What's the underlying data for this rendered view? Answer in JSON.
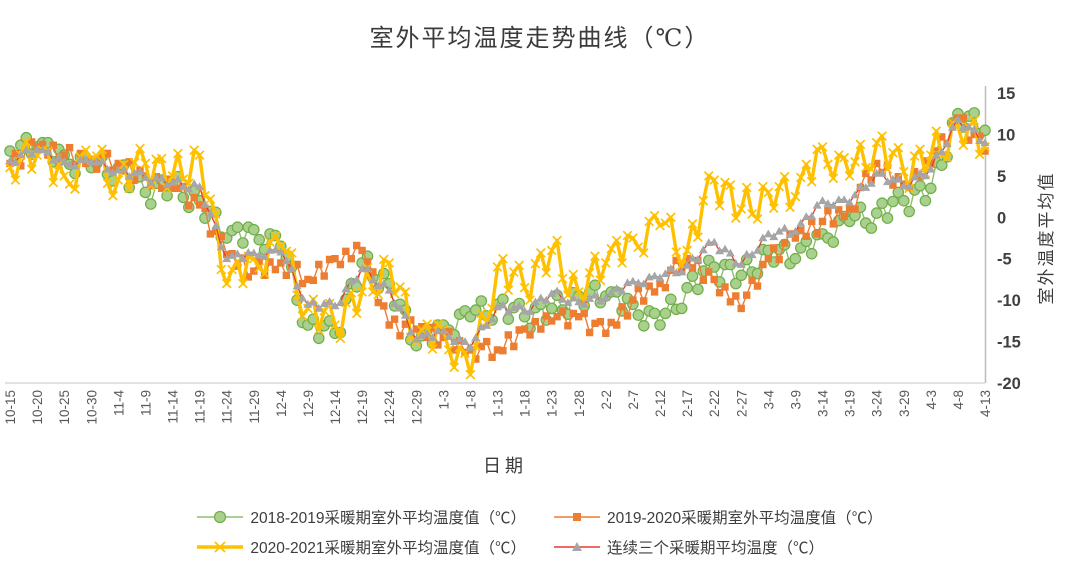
{
  "title": "室外平均温度走势曲线（℃）",
  "axes": {
    "x_title": "日期",
    "y_title": "室外温度平均值",
    "y_ticks": [
      15,
      10,
      5,
      0,
      -5,
      -10,
      -15,
      -20
    ],
    "y_min": -20,
    "y_max": 15,
    "x_tick_labels": [
      "10-15",
      "10-20",
      "10-25",
      "10-30",
      "11-4",
      "11-9",
      "11-14",
      "11-19",
      "11-24",
      "11-29",
      "12-4",
      "12-9",
      "12-14",
      "12-19",
      "12-24",
      "12-29",
      "1-3",
      "1-8",
      "1-13",
      "1-18",
      "1-23",
      "1-28",
      "2-2",
      "2-7",
      "2-12",
      "2-17",
      "2-22",
      "2-27",
      "3-4",
      "3-9",
      "3-14",
      "3-19",
      "3-24",
      "3-29",
      "4-3",
      "4-8",
      "4-13"
    ]
  },
  "colors": {
    "axis_line": "#bfbfbf",
    "baseline": "#d9d9d9",
    "x_tick_color": "#595959",
    "y_tick_color": "#3f3f3f",
    "title_color": "#3b3b3b"
  },
  "chart_data": {
    "type": "line",
    "title": "室外平均温度走势曲线（℃）",
    "xlabel": "日期",
    "ylabel": "室外温度平均值",
    "ylim": [
      -20,
      15
    ],
    "grid": false,
    "legend_position": "bottom",
    "x_anchor_labels": [
      "10-15",
      "10-20",
      "10-25",
      "10-30",
      "11-4",
      "11-9",
      "11-14",
      "11-19",
      "11-24",
      "11-29",
      "12-4",
      "12-9",
      "12-14",
      "12-19",
      "12-24",
      "12-29",
      "1-3",
      "1-8",
      "1-13",
      "1-18",
      "1-23",
      "1-28",
      "2-2",
      "2-7",
      "2-12",
      "2-17",
      "2-22",
      "2-27",
      "3-4",
      "3-9",
      "3-14",
      "3-19",
      "3-24",
      "3-29",
      "4-3",
      "4-8",
      "4-13"
    ],
    "anchor_step_days": 5,
    "total_days": 181,
    "series": [
      {
        "name": "2018-2019采暖期室外平均温度值（℃）",
        "marker": "circle",
        "line_color": "#8fbf6f",
        "marker_fill": "#a9d18e",
        "marker_stroke": "#70ad47",
        "line_width": 1.4,
        "anchor_values": [
          8,
          8.5,
          7.5,
          6,
          6,
          3,
          4,
          2,
          -2.5,
          -1.5,
          -3.5,
          -13,
          -14,
          -5.5,
          -8,
          -15.5,
          -13,
          -12,
          -10.5,
          -12,
          -11,
          -9.5,
          -9.5,
          -10.5,
          -13,
          -8.5,
          -6,
          -7,
          -4,
          -5,
          -2,
          -0.5,
          0.5,
          2,
          3.5,
          12.5,
          10.5
        ],
        "wiggle": [
          0.9,
          -1.2,
          0.5,
          1.3,
          -0.8,
          -1.6,
          0.7
        ]
      },
      {
        "name": "2019-2020采暖期室外平均温度值（℃）",
        "marker": "square",
        "line_color": "#ed7d31",
        "marker_fill": "#ed7d31",
        "marker_stroke": "#d9651a",
        "line_width": 1.4,
        "anchor_values": [
          6.5,
          8.5,
          7.5,
          7,
          6.5,
          5,
          3.5,
          1.5,
          -4.5,
          -6.5,
          -5.5,
          -7.5,
          -5,
          -4,
          -13,
          -13.5,
          -14.5,
          -16,
          -16,
          -13.5,
          -12.5,
          -12,
          -14,
          -10,
          -8,
          -5,
          -7.5,
          -11,
          -5,
          -2.5,
          -0.5,
          1,
          6.5,
          4,
          6.5,
          12,
          8
        ],
        "wiggle": [
          -0.6,
          0.8,
          -1.1,
          0.4,
          1.0,
          -0.9,
          0.5
        ]
      },
      {
        "name": "2020-2021采暖期室外平均温度值（℃）",
        "marker": "x",
        "line_color": "#ffc000",
        "marker_fill": "#ffc000",
        "marker_stroke": "#ffc000",
        "line_width": 3.4,
        "anchor_values": [
          6,
          7.5,
          5,
          7,
          4.5,
          6.5,
          5,
          7.5,
          -8,
          -5,
          -3.5,
          -11,
          -13,
          -9,
          -5.5,
          -15,
          -13.5,
          -19,
          -6,
          -8.5,
          -4,
          -9,
          -5.5,
          -2.5,
          -1,
          -4,
          4.5,
          1,
          3,
          2.5,
          8.5,
          5,
          9,
          5.5,
          7.5,
          11,
          8.5
        ],
        "wiggle": [
          1.5,
          -1.8,
          0.9,
          2.2,
          -1.4,
          -2.4,
          1.1
        ]
      },
      {
        "name": "连续三个采暖期平均温度（℃）",
        "marker": "triangle",
        "line_color": "#e8382f",
        "marker_fill": "#a6a6a6",
        "marker_stroke": "#a6a6a6",
        "line_width": 1.3,
        "anchor_values": [
          6.8,
          8.2,
          6.7,
          6.7,
          5.7,
          4.8,
          4.2,
          3.7,
          -5,
          -4.3,
          -4.2,
          -10.5,
          -10.7,
          -6.2,
          -8.8,
          -14.7,
          -13.7,
          -15.7,
          -10.8,
          -11.3,
          -9.2,
          -10.2,
          -9.7,
          -7.7,
          -7.3,
          -5.8,
          -3,
          -5.7,
          -2,
          -1.7,
          2,
          1.8,
          5.3,
          3.8,
          5.8,
          11.8,
          9
        ],
        "wiggle": [
          0.3,
          -0.4,
          0.2,
          0.5,
          -0.3,
          -0.5,
          0.25
        ]
      }
    ]
  }
}
